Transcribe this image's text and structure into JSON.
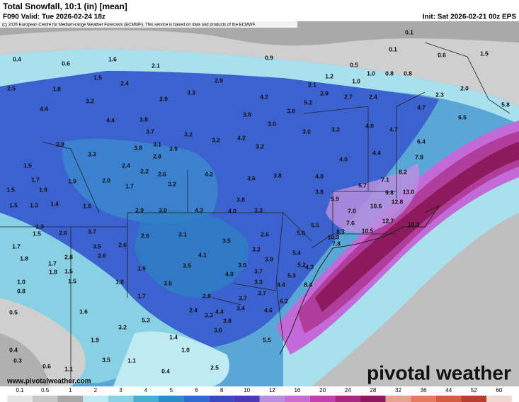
{
  "header": {
    "title": "Total Snowfall, 10:1 (in) [mean]",
    "valid": "F090 Valid: Tue 2026-02-24 18z",
    "init": "Init: Sat 2026-02-21 00z EPS",
    "credit": "(c) 2026 European Centre for Medium-range Weather Forecasts (ECMWF). This service is based on data and products of the ECMWF."
  },
  "footer": {
    "url": "www.pivotalweather.com",
    "logo": "pivotal weather"
  },
  "colorbar": {
    "labels": [
      "0.1",
      "0.5",
      "1",
      "2",
      "3",
      "4",
      "5",
      "6",
      "8",
      "10",
      "12",
      "16",
      "20",
      "24",
      "28",
      "32",
      "36",
      "44",
      "52",
      "60"
    ],
    "colors": [
      "#e4e4e4",
      "#c8c8c8",
      "#a8a8a8",
      "#bfeaf4",
      "#88d3e6",
      "#48aed4",
      "#2a8cc8",
      "#2e6cd2",
      "#3a48c6",
      "#4a3ab8",
      "#b88ee0",
      "#cc6ad6",
      "#c040b0",
      "#a82880",
      "#8c1a5c",
      "#e8a090",
      "#e67a60",
      "#d65a40",
      "#b83c30",
      "#f0d8d0"
    ]
  },
  "map_labels": [
    "0.1",
    "0.1",
    "1.5",
    "0.6",
    "0.4",
    "0.6",
    "1.6",
    "0.9",
    "0.5",
    "2.1",
    "1.0",
    "0.8",
    "0.8",
    "1.5",
    "1.2",
    "1.0",
    "2.5",
    "1.8",
    "2.4",
    "3.3",
    "2.9",
    "2.1",
    "2.9",
    "2.7",
    "2.4",
    "2.3",
    "2.0",
    "4.2",
    "5.2",
    "3.2",
    "2.9",
    "5.8",
    "4.7",
    "4.4",
    "3.8",
    "3.8",
    "4.4",
    "3.8",
    "6.5",
    "3.0",
    "3.7",
    "3.2",
    "3.0",
    "3.2",
    "4.0",
    "4.7",
    "3.2",
    "4.2",
    "2.9",
    "3.1",
    "2.9",
    "3.8",
    "3.2",
    "6.4",
    "7.8",
    "4.4",
    "3.3",
    "2.8",
    "4.0",
    "1.5",
    "2.4",
    "2.2",
    "2.6",
    "4.2",
    "3.6",
    "3.8",
    "4.0",
    "7.1",
    "8.2",
    "1.7",
    "1.9",
    "2.0",
    "1.7",
    "3.2",
    "5.7",
    "9.8",
    "13.0",
    "1.5",
    "1.9",
    "3.8",
    "3.8",
    "5.9",
    "12.8",
    "1.5",
    "1.3",
    "1.4",
    "1.6",
    "2.9",
    "3.0",
    "4.3",
    "4.0",
    "3.3",
    "7.0",
    "10.6",
    "10.3",
    "5.5",
    "7.6",
    "12.7",
    "1.3",
    "1.5",
    "3.7",
    "2.6",
    "2.6",
    "3.1",
    "2.6",
    "5.0",
    "8.3",
    "10.5",
    "10.3",
    "3.5",
    "7.8",
    "1.7",
    "3.5",
    "2.6",
    "3.2",
    "5.4",
    "1.8",
    "2.8",
    "2.6",
    "4.1",
    "3.9",
    "5.2",
    "1.7",
    "1.9",
    "3.5",
    "3.6",
    "4.3",
    "1.8",
    "1.5",
    "4.0",
    "3.7",
    "5.3",
    "1.0",
    "1.5",
    "1.8",
    "3.5",
    "3.3",
    "4.4",
    "8.4",
    "0.8",
    "1.7",
    "2.8",
    "3.7",
    "3.7",
    "6.2",
    "3.4",
    "4.6",
    "0.5",
    "1.6",
    "2.4",
    "4.4",
    "3.3",
    "3.8",
    "5.3",
    "3.6",
    "3.2",
    "1.4",
    "5.5",
    "1.9",
    "0.4",
    "1.0",
    "0.3",
    "3.5",
    "1.1",
    "0.6",
    "2.5",
    "1.1",
    "0.4"
  ]
}
